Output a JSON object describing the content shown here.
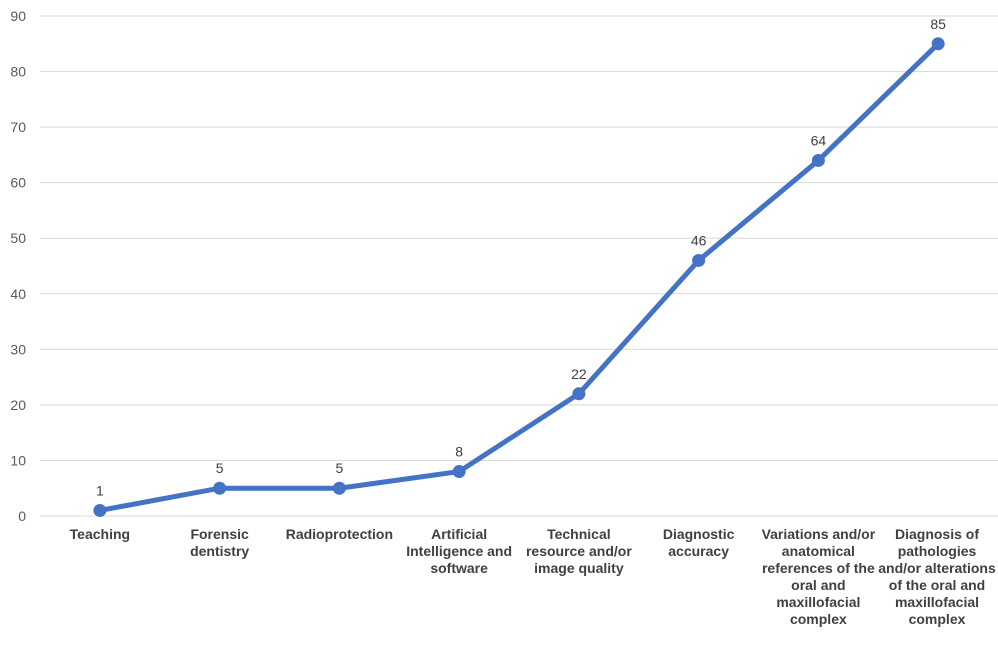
{
  "chart_data": {
    "type": "line",
    "categories": [
      "Teaching",
      "Forensic dentistry",
      "Radioprotection",
      "Artificial Intelligence and software",
      "Technical resource and/or image quality",
      "Diagnostic accuracy",
      "Variations and/or anatomical references of the oral and maxillofacial complex",
      "Diagnosis of pathologies and/or alterations of the oral and maxillofacial complex"
    ],
    "series": [
      {
        "values": [
          1,
          5,
          5,
          8,
          22,
          46,
          64,
          85
        ]
      }
    ],
    "ylim": [
      0,
      90
    ],
    "yticks": [
      0,
      10,
      20,
      30,
      40,
      50,
      60,
      70,
      80,
      90
    ],
    "data_labels": true,
    "grid": true,
    "legend": "none",
    "colors": {
      "line": "#4472C4",
      "grid": "#d9d9d9"
    }
  }
}
